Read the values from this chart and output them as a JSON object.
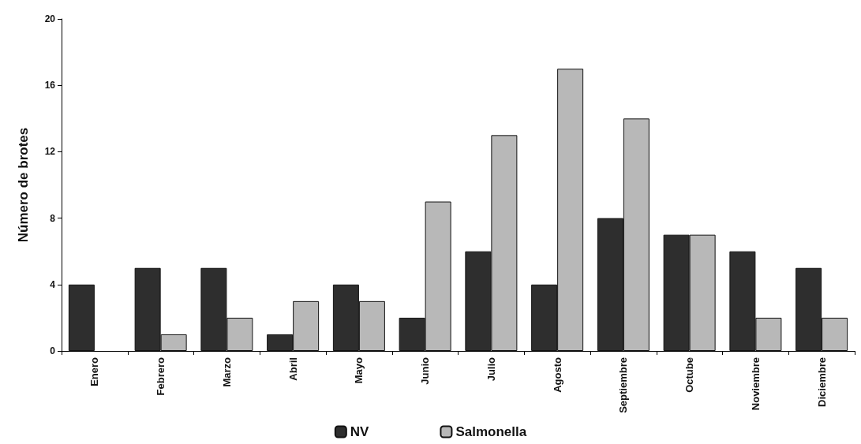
{
  "chart_data": {
    "type": "bar",
    "ylabel": "Número de brotes",
    "categories": [
      "Enero",
      "Febrero",
      "Marzo",
      "Abril",
      "Mayo",
      "Junio",
      "Julio",
      "Agosto",
      "Septiembre",
      "Octube",
      "Noviembre",
      "Diciembre"
    ],
    "series": [
      {
        "name": "NV",
        "color": "#2e2e2e",
        "values": [
          4,
          5,
          5,
          1,
          4,
          2,
          6,
          4,
          8,
          7,
          6,
          5
        ]
      },
      {
        "name": "Salmonella",
        "color": "#b8b8b8",
        "values": [
          0,
          1,
          2,
          3,
          3,
          9,
          13,
          17,
          14,
          7,
          2,
          2
        ]
      }
    ],
    "ylim": [
      0,
      20
    ],
    "yticks": [
      0,
      4,
      8,
      12,
      16,
      20
    ],
    "grid": false,
    "legend": "bottom"
  }
}
